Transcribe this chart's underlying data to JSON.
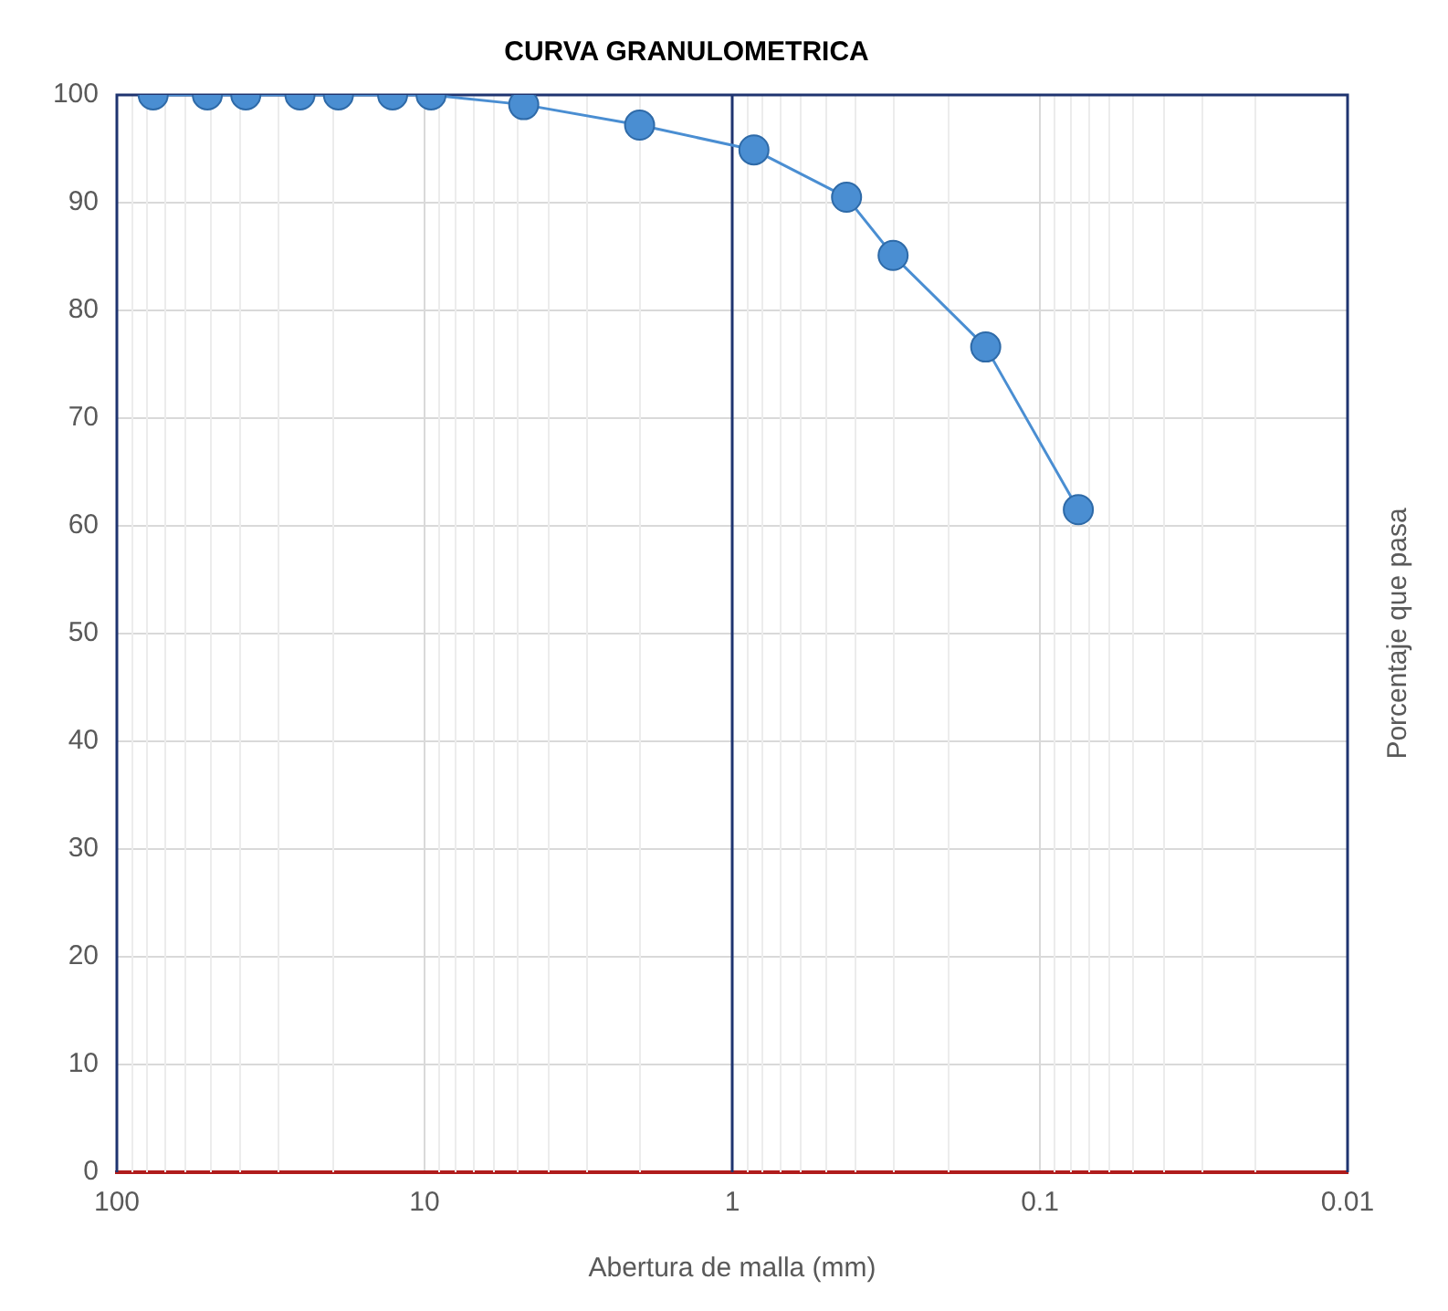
{
  "chart_data": {
    "type": "line",
    "title": "CURVA GRANULOMETRICA",
    "xlabel": "Abertura de malla (mm)",
    "ylabel": "Porcentaje que pasa",
    "x": [
      76.2,
      50.8,
      38.1,
      25.4,
      19.05,
      12.7,
      9.525,
      4.76,
      2,
      0.85,
      0.425,
      0.3,
      0.15,
      0.075
    ],
    "series": [
      {
        "color": "#4a8ed2",
        "values": [
          100,
          100,
          100,
          100,
          100,
          100,
          100,
          99.1,
          97.2,
          94.9,
          90.5,
          85.1,
          76.6,
          61.5
        ]
      }
    ],
    "log": "x",
    "xlim": [
      100,
      0.01
    ],
    "xticks": [
      100,
      10,
      1,
      0.1,
      0.01
    ],
    "ylim": [
      0,
      100
    ],
    "yticks": [
      0,
      10,
      20,
      30,
      40,
      50,
      60,
      70,
      80,
      90,
      100
    ],
    "ref_lines": [
      {
        "axis": "x",
        "value": 1,
        "color": "#1f3470"
      }
    ],
    "grid": true,
    "legend": false,
    "marker": "circle",
    "line_style": "solid"
  }
}
